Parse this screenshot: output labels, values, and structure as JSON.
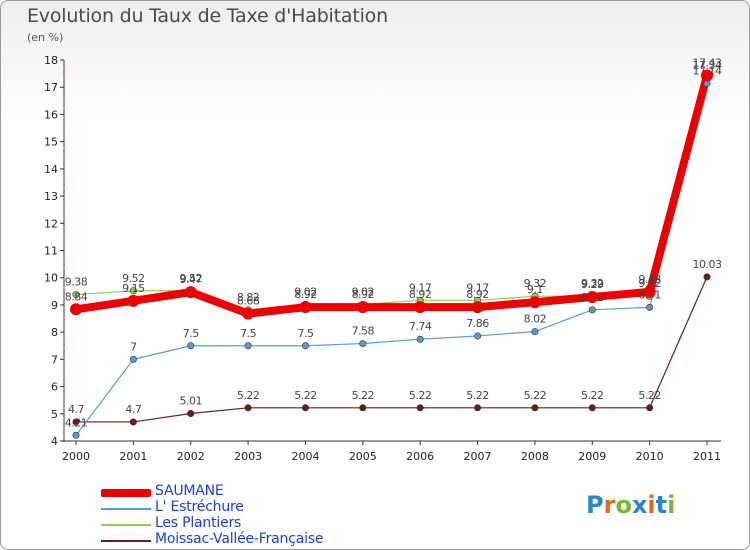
{
  "header": {
    "title": "Evolution du Taux de Taxe d'Habitation",
    "subtitle": "(en %)"
  },
  "logo": {
    "text": "Proxiti",
    "letters": [
      {
        "ch": "P",
        "color": "#2a86c8"
      },
      {
        "ch": "r",
        "color": "#e8671e"
      },
      {
        "ch": "o",
        "color": "#7cb82f"
      },
      {
        "ch": "x",
        "color": "#2a86c8"
      },
      {
        "ch": "i",
        "color": "#e8671e"
      },
      {
        "ch": "t",
        "color": "#2a86c8"
      },
      {
        "ch": "i",
        "color": "#7cb82f"
      }
    ]
  },
  "chart_data": {
    "type": "line",
    "title": "Evolution du Taux de Taxe d'Habitation",
    "ylabel": "(en %)",
    "xlabel": "",
    "ylim": [
      4,
      18
    ],
    "yticks": [
      4,
      5,
      6,
      7,
      8,
      9,
      10,
      11,
      12,
      13,
      14,
      15,
      16,
      17,
      18
    ],
    "grid": false,
    "legend_position": "bottom-left",
    "x": [
      "2000",
      "2001",
      "2002",
      "2003",
      "2004",
      "2005",
      "2006",
      "2007",
      "2008",
      "2009",
      "2010",
      "2011"
    ],
    "series": [
      {
        "name": "Moissac-Vallée-Française",
        "color": "#6b1c1c",
        "width": 1.2,
        "values": [
          4.7,
          4.7,
          5.01,
          5.22,
          5.22,
          5.22,
          5.22,
          5.22,
          5.22,
          5.22,
          5.22,
          10.03
        ],
        "labels": [
          "4.7",
          "4.7",
          "5.01",
          "5.22",
          "5.22",
          "5.22",
          "5.22",
          "5.22",
          "5.22",
          "5.22",
          "5.22",
          "10.03"
        ]
      },
      {
        "name": "L' Estréchure",
        "color": "#5b9bd5",
        "width": 1.2,
        "values": [
          4.21,
          7,
          7.5,
          7.5,
          7.5,
          7.58,
          7.74,
          7.86,
          8.02,
          8.82,
          8.91,
          17.14
        ],
        "labels": [
          "4.21",
          "7",
          "7.5",
          "7.5",
          "7.5",
          "7.58",
          "7.74",
          "7.86",
          "8.02",
          "8.82",
          "8.91",
          "17.14"
        ]
      },
      {
        "name": "Les Plantiers",
        "color": "#8fd14f",
        "width": 1.2,
        "values": [
          9.38,
          9.52,
          9.52,
          8.82,
          9.02,
          9.02,
          9.17,
          9.17,
          9.32,
          9.32,
          9.32,
          17.34
        ],
        "labels": [
          "9.38",
          "9.52",
          "9.52",
          "8.82",
          "9.02",
          "9.02",
          "9.17",
          "9.17",
          "9.32",
          "9.32",
          "9.32",
          "17.34"
        ]
      },
      {
        "name": "SAUMANE",
        "color": "#ee0000",
        "width": 8,
        "values": [
          8.84,
          9.15,
          9.47,
          8.68,
          8.92,
          8.92,
          8.92,
          8.92,
          9.1,
          9.29,
          9.48,
          17.43
        ],
        "labels": [
          "8.84",
          "9.15",
          "9.47",
          "8.68",
          "8.92",
          "8.92",
          "8.92",
          "8.92",
          "9.1",
          "9.29",
          "9.48",
          "17.43"
        ]
      }
    ],
    "legend": [
      "SAUMANE",
      "L' Estréchure",
      "Les Plantiers",
      "Moissac-Vallée-Française"
    ]
  }
}
